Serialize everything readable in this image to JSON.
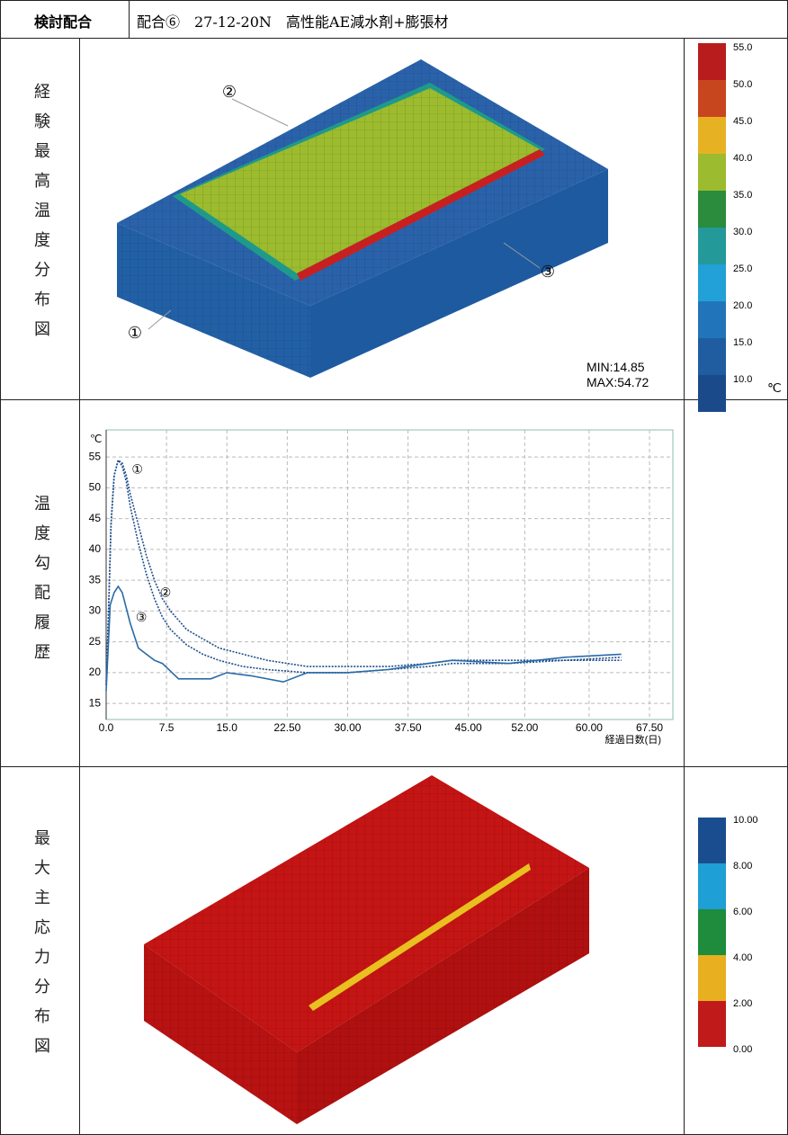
{
  "header": {
    "label": "検討配合",
    "mix": "配合⑥　27-12-20N　高性能AE減水剤+膨張材"
  },
  "rows": [
    {
      "label": "経験最高温度分布図",
      "markers": [
        "①",
        "②",
        "③"
      ],
      "min": "MIN:14.85",
      "max": "MAX:54.72",
      "unit": "℃",
      "legend": [
        {
          "value": 55,
          "label": "55.0",
          "color": "#b81c1c"
        },
        {
          "value": 50,
          "label": "50.0",
          "color": "#c8461e"
        },
        {
          "value": 45,
          "label": "45.0",
          "color": "#e6b224"
        },
        {
          "value": 40,
          "label": "40.0",
          "color": "#9cbb2e"
        },
        {
          "value": 35,
          "label": "35.0",
          "color": "#2a8c3c"
        },
        {
          "value": 30,
          "label": "30.0",
          "color": "#24999a"
        },
        {
          "value": 25,
          "label": "25.0",
          "color": "#22a0d8"
        },
        {
          "value": 20,
          "label": "20.0",
          "color": "#2274ba"
        },
        {
          "value": 15,
          "label": "15.0",
          "color": "#1f5ca0"
        },
        {
          "value": 10,
          "label": "10.0",
          "color": "#1a4a8a"
        }
      ]
    },
    {
      "label": "温度勾配履歴"
    },
    {
      "label": "最大主応力分布図",
      "legend": [
        {
          "value": 10,
          "label": "10.00",
          "color": "#1a4d8f"
        },
        {
          "value": 8,
          "label": "8.00",
          "color": "#1e9fd6"
        },
        {
          "value": 6,
          "label": "6.00",
          "color": "#1e8c3c"
        },
        {
          "value": 4,
          "label": "4.00",
          "color": "#e8b020"
        },
        {
          "value": 2,
          "label": "2.00",
          "color": "#c01a1a"
        },
        {
          "value": 0,
          "label": "0.00"
        }
      ]
    }
  ],
  "chart_data": {
    "type": "line",
    "y_unit": "℃",
    "x_label": "経過日数(日)",
    "xlim": [
      0,
      70.4
    ],
    "ylim": [
      12.4,
      59.4
    ],
    "xticks": [
      {
        "value": 0,
        "label": "0.0"
      },
      7.5,
      {
        "value": 15,
        "label": "15.0"
      },
      {
        "value": 22.5,
        "label": "22.50"
      },
      {
        "value": 30,
        "label": "30.00"
      },
      {
        "value": 37.5,
        "label": "37.50"
      },
      {
        "value": 45,
        "label": "45.00"
      },
      {
        "value": 52,
        "label": "52.00"
      },
      {
        "value": 60,
        "label": "60.00"
      },
      {
        "value": 67.5,
        "label": "67.50"
      }
    ],
    "yticks": [
      15,
      20,
      25,
      30,
      35,
      40,
      45,
      50,
      55
    ],
    "grid": true,
    "series": [
      {
        "name": "①",
        "color": "#1f4e8c",
        "x": [
          0,
          0.3,
          0.6,
          1,
          1.5,
          2,
          2.5,
          3,
          4,
          5,
          6,
          7,
          8,
          10,
          12,
          14,
          17,
          20,
          25,
          30,
          35,
          40,
          43,
          50,
          57,
          64
        ],
        "values": [
          18,
          30,
          44,
          52,
          54.5,
          54,
          52,
          49,
          44,
          39,
          35,
          32,
          30,
          27,
          25.5,
          24,
          23,
          22,
          21,
          21,
          21,
          21.5,
          22,
          22,
          22,
          22.5
        ]
      },
      {
        "name": "②",
        "color": "#1f4e8c",
        "x": [
          0,
          0.3,
          0.6,
          1,
          1.5,
          2,
          2.5,
          3,
          4,
          5,
          6,
          7,
          8,
          10,
          12,
          14,
          17,
          20,
          25,
          30,
          35,
          40,
          43,
          50,
          57,
          64
        ],
        "values": [
          18,
          30,
          44,
          52,
          54.5,
          53.5,
          51,
          47,
          41,
          36,
          32,
          29,
          27,
          24.5,
          23,
          22,
          21,
          20.5,
          20,
          20,
          20.5,
          21,
          21.5,
          21.5,
          22,
          22
        ]
      },
      {
        "name": "③",
        "color": "#2a6aa8",
        "x": [
          0,
          0.5,
          1,
          1.5,
          2,
          3,
          4,
          5,
          6,
          7,
          9,
          11,
          13,
          15,
          18,
          22,
          25,
          30,
          35,
          40,
          43,
          50,
          57,
          64
        ],
        "values": [
          17,
          31,
          33,
          34,
          33,
          28,
          24,
          23,
          22,
          21.5,
          19,
          19,
          19,
          20,
          19.5,
          18.5,
          20,
          20,
          20.5,
          21.5,
          22,
          21.5,
          22.5,
          23
        ]
      }
    ]
  }
}
